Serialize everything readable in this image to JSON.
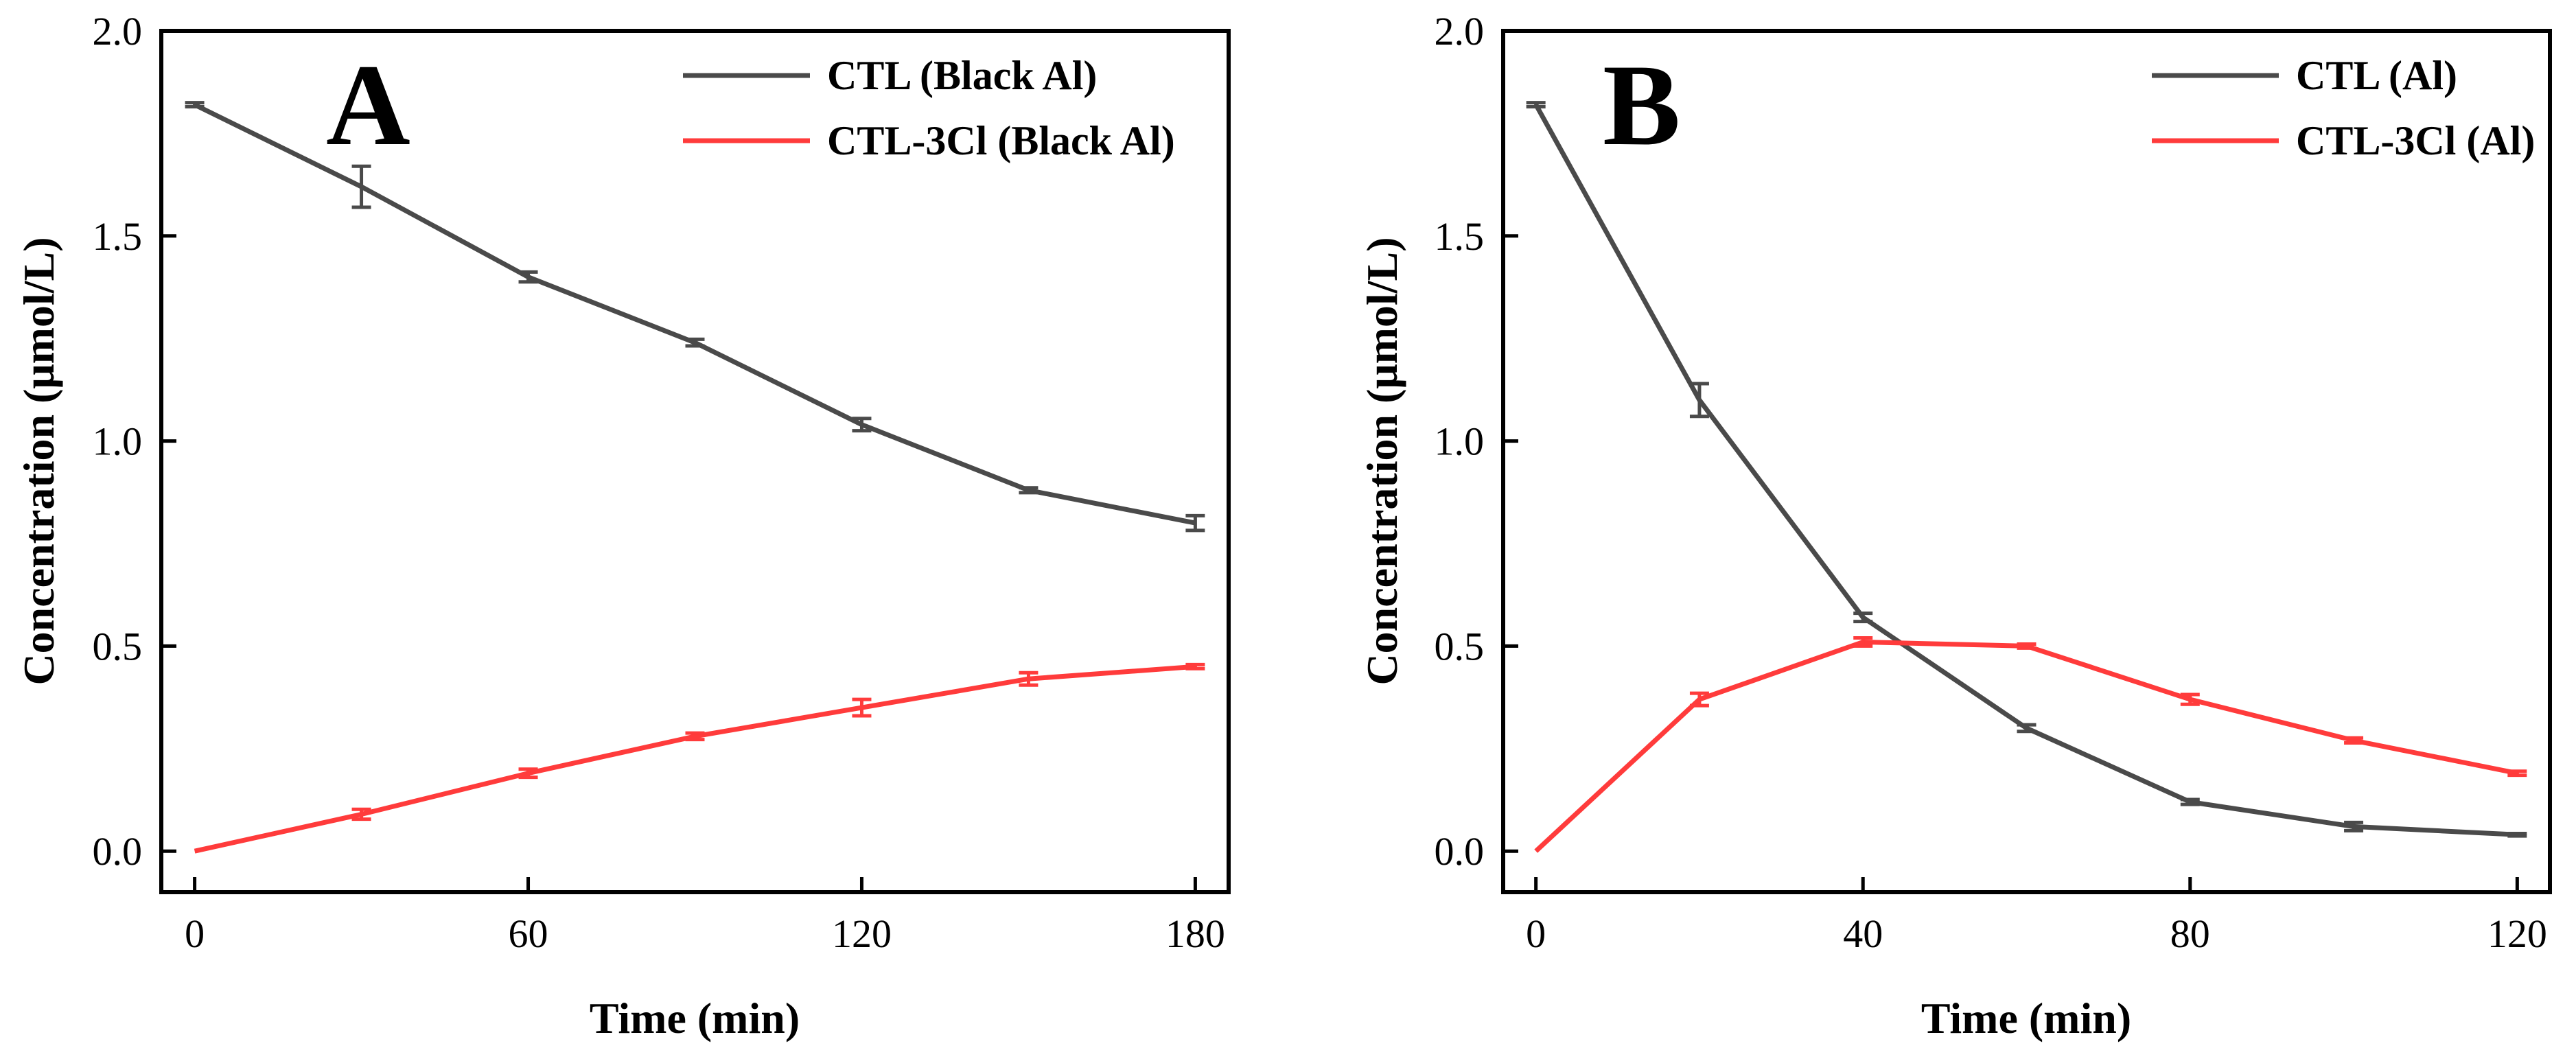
{
  "chart_data": [
    {
      "type": "line",
      "panel_label": "A",
      "xlabel": "Time (min)",
      "ylabel": "Concentration (μmol/L)",
      "xlim": [
        -6,
        186
      ],
      "ylim": [
        -0.1,
        2.0
      ],
      "xticks": [
        0,
        60,
        120,
        180
      ],
      "yticks": [
        0.0,
        0.5,
        1.0,
        1.5,
        2.0
      ],
      "xtick_labels": [
        "0",
        "60",
        "120",
        "180"
      ],
      "ytick_labels": [
        "0.0",
        "0.5",
        "1.0",
        "1.5",
        "2.0"
      ],
      "legend_position": "top-right",
      "series": [
        {
          "name": "CTL (Black Al)",
          "color": "#4a4a4a",
          "x": [
            0,
            30,
            60,
            90,
            120,
            150,
            180
          ],
          "y": [
            1.82,
            1.62,
            1.4,
            1.24,
            1.04,
            0.88,
            0.8
          ],
          "err": [
            0.005,
            0.05,
            0.012,
            0.008,
            0.015,
            0.006,
            0.018
          ]
        },
        {
          "name": "CTL-3Cl (Black Al)",
          "color": "#ff3b3b",
          "x": [
            0,
            30,
            60,
            90,
            120,
            150,
            180
          ],
          "y": [
            0.0,
            0.09,
            0.19,
            0.28,
            0.35,
            0.42,
            0.45
          ],
          "err": [
            0.0,
            0.012,
            0.01,
            0.008,
            0.02,
            0.015,
            0.005
          ]
        }
      ]
    },
    {
      "type": "line",
      "panel_label": "B",
      "xlabel": "Time (min)",
      "ylabel": "Concentration (μmol/L)",
      "xlim": [
        -4,
        124
      ],
      "ylim": [
        -0.1,
        2.0
      ],
      "xticks": [
        0,
        40,
        80,
        120
      ],
      "yticks": [
        0.0,
        0.5,
        1.0,
        1.5,
        2.0
      ],
      "xtick_labels": [
        "0",
        "40",
        "80",
        "120"
      ],
      "ytick_labels": [
        "0.0",
        "0.5",
        "1.0",
        "1.5",
        "2.0"
      ],
      "legend_position": "top-right",
      "series": [
        {
          "name": "CTL (Al)",
          "color": "#4a4a4a",
          "x": [
            0,
            20,
            40,
            60,
            80,
            100,
            120
          ],
          "y": [
            1.82,
            1.1,
            0.57,
            0.3,
            0.12,
            0.06,
            0.04
          ],
          "err": [
            0.005,
            0.04,
            0.01,
            0.008,
            0.006,
            0.01,
            0.003
          ]
        },
        {
          "name": "CTL-3Cl (Al)",
          "color": "#ff3b3b",
          "x": [
            0,
            20,
            40,
            60,
            80,
            100,
            120
          ],
          "y": [
            0.0,
            0.37,
            0.51,
            0.5,
            0.37,
            0.27,
            0.19
          ],
          "err": [
            0.0,
            0.015,
            0.01,
            0.005,
            0.012,
            0.006,
            0.005
          ]
        }
      ]
    }
  ]
}
